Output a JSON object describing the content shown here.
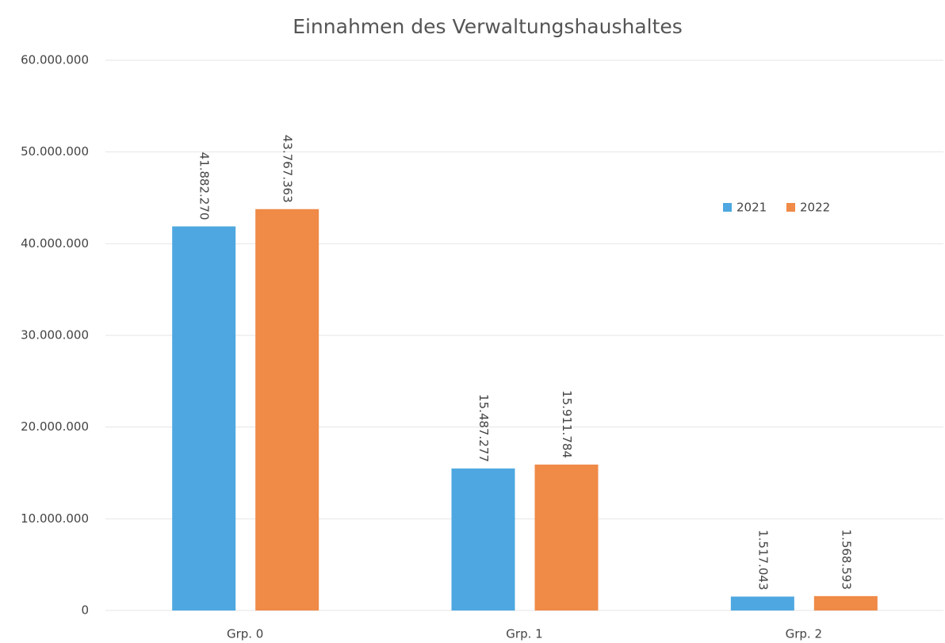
{
  "chart_data": {
    "type": "bar",
    "title": "Einnahmen des Verwaltungshaushaltes",
    "categories": [
      "Grp. 0",
      "Grp. 1",
      "Grp. 2"
    ],
    "series": [
      {
        "name": "2021",
        "color": "#4ea7e0",
        "values": [
          41882270,
          15487277,
          1517043
        ],
        "value_labels": [
          "41.882.270",
          "15.487.277",
          "1.517.043"
        ]
      },
      {
        "name": "2022",
        "color": "#ef8a47",
        "values": [
          43767363,
          15911784,
          1568593
        ],
        "value_labels": [
          "43.767.363",
          "15.911.784",
          "1.568.593"
        ]
      }
    ],
    "ylim": [
      0,
      60000000
    ],
    "yticks": [
      0,
      {
        "value": 10000000,
        "label": "10.000.000"
      },
      {
        "value": 20000000,
        "label": "20.000.000"
      },
      {
        "value": 30000000,
        "label": "30.000.000"
      },
      {
        "value": 40000000,
        "label": "40.000.000"
      },
      {
        "value": 50000000,
        "label": "50.000.000"
      },
      {
        "value": 60000000,
        "label": "60.000.000"
      }
    ],
    "grid": true,
    "legend": "right"
  }
}
